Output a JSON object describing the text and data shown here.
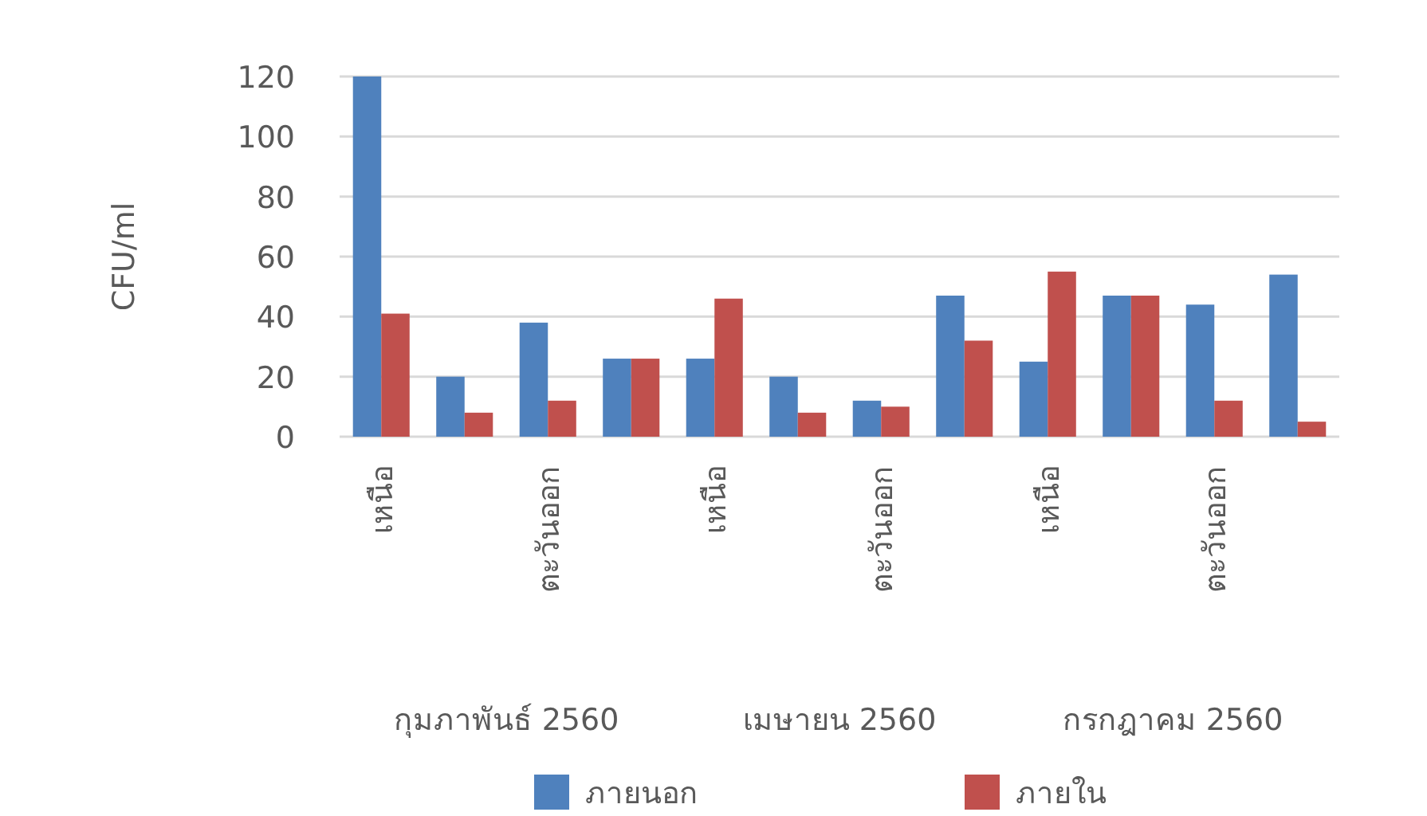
{
  "chart_data": {
    "type": "bar",
    "ylabel": "CFU/ml",
    "categories": [
      "เหนือ",
      null,
      "ตะวันออก",
      null,
      "เหนือ",
      null,
      "ตะวันออก",
      null,
      "เหนือ",
      null,
      "ตะวันออก",
      null
    ],
    "series": [
      {
        "name": "ภายนอก",
        "color": "#4f81bd",
        "values": [
          120,
          20,
          38,
          26,
          26,
          20,
          12,
          47,
          25,
          47,
          44,
          54
        ]
      },
      {
        "name": "ภายใน",
        "color": "#c0504d",
        "values": [
          41,
          8,
          12,
          26,
          46,
          8,
          10,
          32,
          55,
          47,
          12,
          5
        ]
      }
    ],
    "ylim": [
      0,
      120
    ],
    "yticks": [
      0,
      20,
      40,
      60,
      80,
      100,
      120
    ],
    "grid": "y",
    "legend": "bottom",
    "annotations": [
      "กุมภาพันธ์ 2560",
      "เมษายน 2560",
      "กรกฎาคม 2560"
    ]
  }
}
